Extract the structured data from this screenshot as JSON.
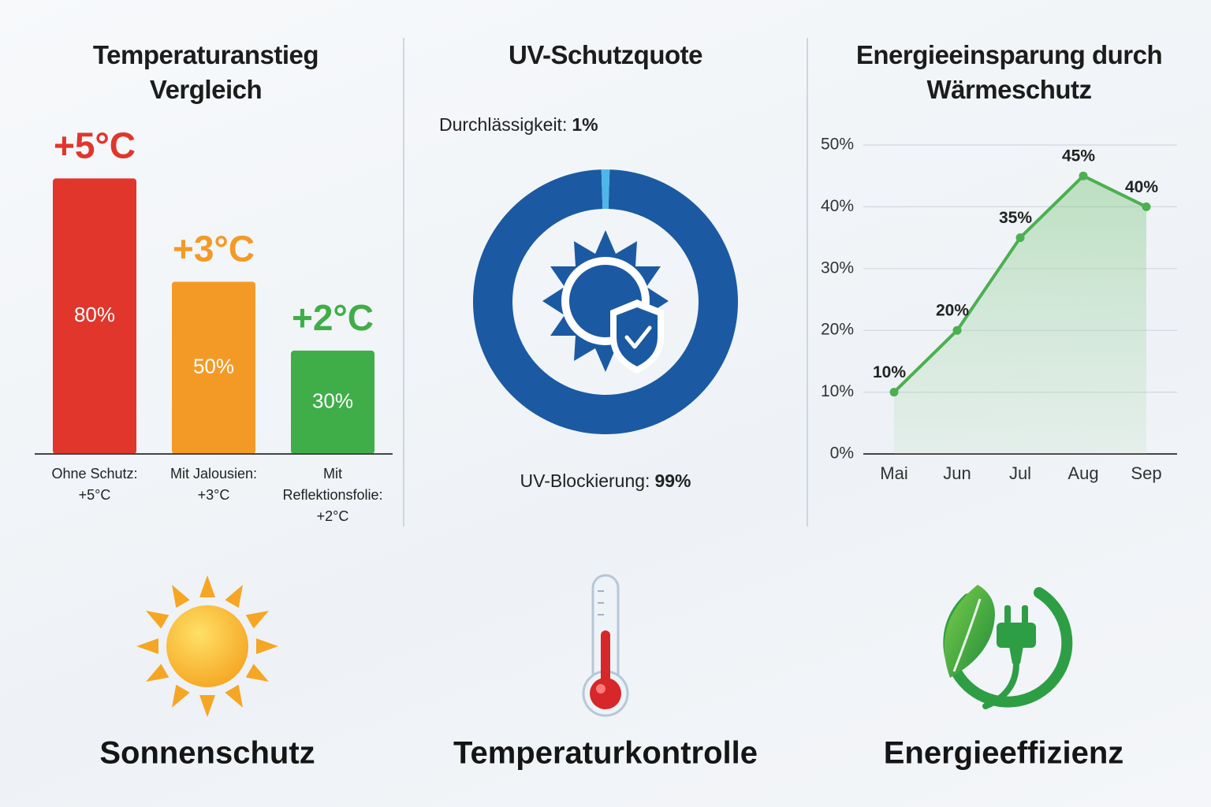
{
  "chart_data": [
    {
      "type": "bar",
      "title": "Temperaturanstieg Vergleich",
      "categories": [
        "Ohne Schutz: +5°C",
        "Mit Jalousien: +3°C",
        "Mit Reflektionsfolie: +2°C"
      ],
      "values": [
        80,
        50,
        30
      ],
      "value_labels": [
        "80%",
        "50%",
        "30%"
      ],
      "annotations": [
        "+5°C",
        "+3°C",
        "+2°C"
      ],
      "colors": [
        "#e0362c",
        "#f39a26",
        "#3fae49"
      ]
    },
    {
      "type": "pie",
      "title": "UV-Schutzquote",
      "categories": [
        "UV-Blockierung:",
        "Durchlässigkeit:"
      ],
      "values": [
        99,
        1
      ],
      "value_labels": [
        "99%",
        "1%"
      ],
      "colors": [
        "#1b5aa2",
        "#4fb6ea"
      ]
    },
    {
      "type": "line",
      "title": "Energieeinsparung durch Wärmeschutz",
      "categories": [
        "Mai",
        "Jun",
        "Jul",
        "Aug",
        "Sep"
      ],
      "values": [
        10,
        20,
        35,
        45,
        40
      ],
      "value_labels": [
        "10%",
        "20%",
        "35%",
        "45%",
        "40%"
      ],
      "color": "#4caf50",
      "grid": true,
      "ylim": [
        0,
        50
      ],
      "yticks": [
        {
          "value": 0,
          "label": "0%"
        },
        {
          "value": 10,
          "label": "10%"
        },
        {
          "value": 20,
          "label": "20%"
        },
        {
          "value": 30,
          "label": "30%"
        },
        {
          "value": 40,
          "label": "40%"
        },
        {
          "value": 50,
          "label": "50%"
        }
      ]
    }
  ],
  "features": [
    "Sonnenschutz",
    "Temperaturkontrolle",
    "Energieeffizienz"
  ]
}
